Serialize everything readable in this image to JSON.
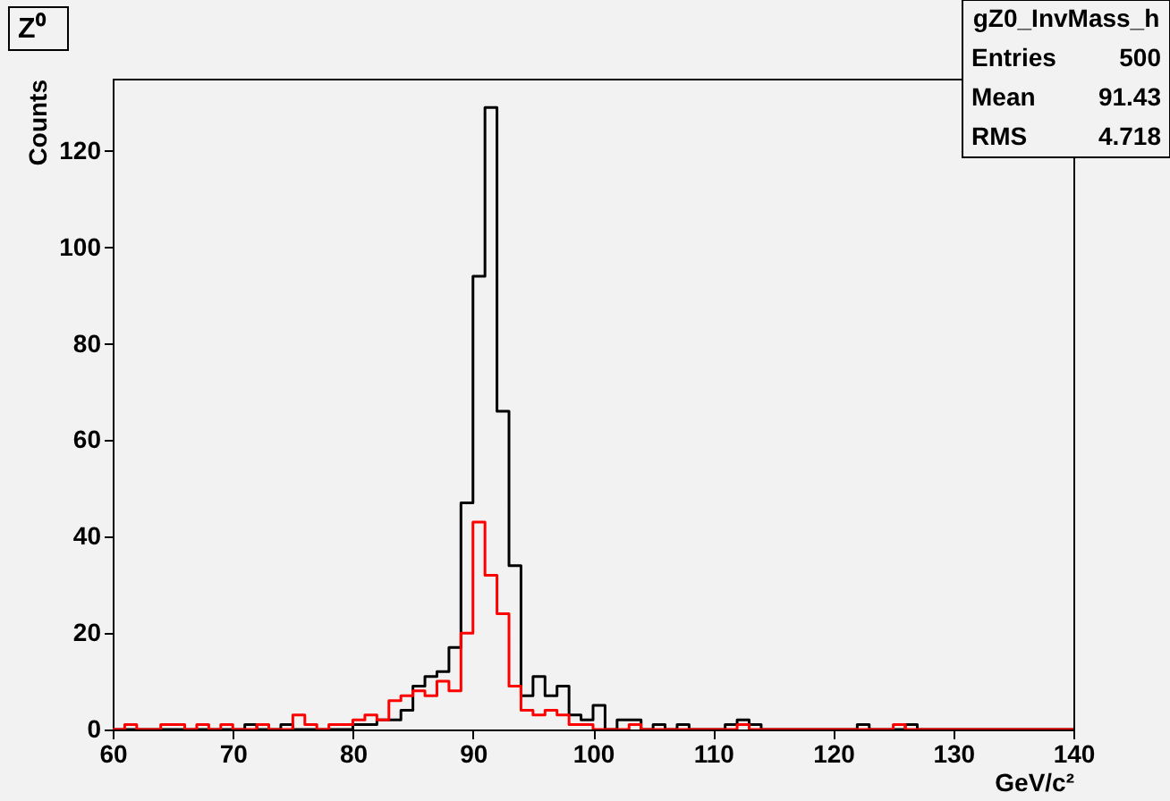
{
  "chart_data": {
    "type": "histogram",
    "title": "Z⁰",
    "xlabel": "GeV/c²",
    "ylabel": "Counts",
    "bins": [
      60,
      61,
      62,
      63,
      64,
      65,
      66,
      67,
      68,
      69,
      70,
      71,
      72,
      73,
      74,
      75,
      76,
      77,
      78,
      79,
      80,
      81,
      82,
      83,
      84,
      85,
      86,
      87,
      88,
      89,
      90,
      91,
      92,
      93,
      94,
      95,
      96,
      97,
      98,
      99,
      100,
      101,
      102,
      103,
      104,
      105,
      106,
      107,
      108,
      109,
      110,
      111,
      112,
      113,
      114,
      115,
      116,
      117,
      118,
      119,
      120,
      121,
      122,
      123,
      124,
      125,
      126,
      127,
      128,
      129,
      130,
      131,
      132,
      133,
      134,
      135,
      136,
      137,
      138,
      139,
      140
    ],
    "series": [
      {
        "color": "#000000",
        "values": [
          0,
          0,
          0,
          0,
          0,
          0,
          0,
          0,
          0,
          0,
          0,
          1,
          0,
          0,
          1,
          0,
          0,
          0,
          0,
          0,
          1,
          1,
          2,
          2,
          4,
          9,
          11,
          12,
          17,
          47,
          94,
          129,
          66,
          34,
          7,
          11,
          7,
          9,
          3,
          2,
          5,
          0,
          2,
          2,
          0,
          1,
          0,
          1,
          0,
          0,
          0,
          1,
          2,
          1,
          0,
          0,
          0,
          0,
          0,
          0,
          0,
          0,
          1,
          0,
          0,
          0,
          1,
          0,
          0,
          0,
          0,
          0,
          0,
          0,
          0,
          0,
          0,
          0,
          0,
          0
        ]
      },
      {
        "color": "#ff0000",
        "values": [
          0,
          1,
          0,
          0,
          1,
          1,
          0,
          1,
          0,
          1,
          0,
          0,
          1,
          0,
          0,
          3,
          1,
          0,
          1,
          1,
          2,
          3,
          2,
          6,
          7,
          8,
          7,
          10,
          8,
          20,
          43,
          32,
          24,
          9,
          4,
          3,
          4,
          3,
          1,
          1,
          0,
          0,
          0,
          1,
          0,
          0,
          0,
          0,
          0,
          0,
          0,
          0,
          1,
          0,
          0,
          0,
          0,
          0,
          0,
          0,
          0,
          0,
          0,
          0,
          0,
          1,
          0,
          0,
          0,
          0,
          0,
          0,
          0,
          0,
          0,
          0,
          0,
          0,
          0,
          0
        ]
      }
    ],
    "xlim": [
      60,
      140
    ],
    "xticks": [
      60,
      70,
      80,
      90,
      100,
      110,
      120,
      130,
      140
    ],
    "ylim": [
      0,
      135
    ],
    "yticks": [
      0,
      20,
      40,
      60,
      80,
      100,
      120
    ],
    "grid": false,
    "annotations": [
      "gZ0_InvMass_h",
      "Entries",
      "500",
      "Mean",
      "91.43",
      "RMS",
      "4.718"
    ]
  }
}
